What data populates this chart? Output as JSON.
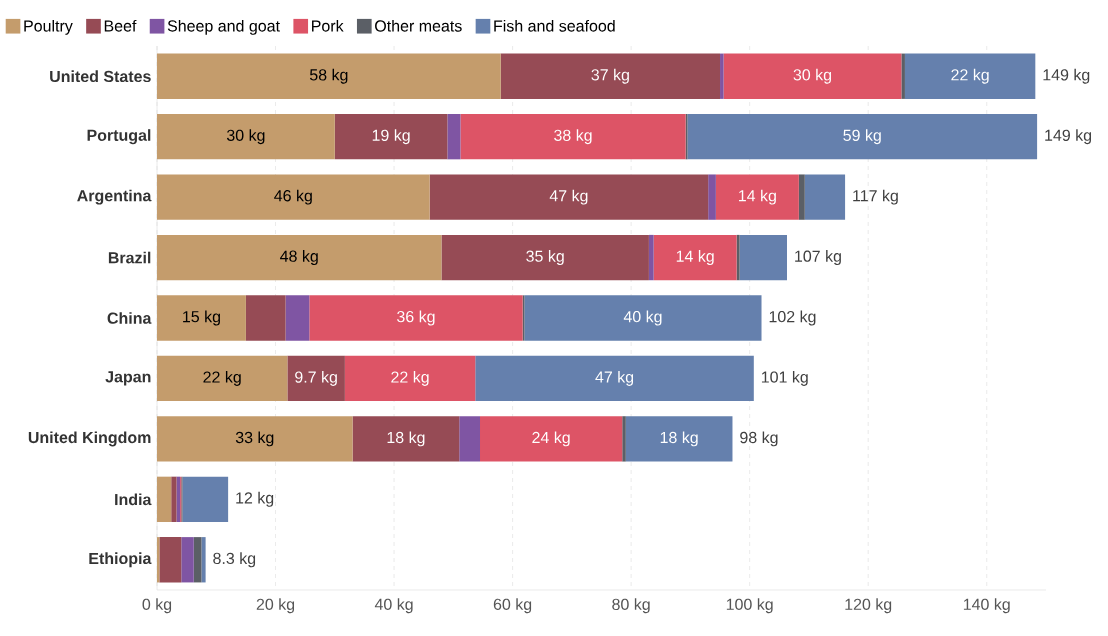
{
  "chart_data": {
    "type": "bar",
    "orientation": "horizontal",
    "stacked": true,
    "categories": [
      "United States",
      "Portugal",
      "Argentina",
      "Brazil",
      "China",
      "Japan",
      "United Kingdom",
      "India",
      "Ethiopia"
    ],
    "series": [
      {
        "name": "Poultry",
        "color": "#c49c6c",
        "values": [
          58,
          30,
          46,
          48,
          15,
          22,
          33,
          2.4,
          0.4
        ],
        "value_labels": [
          "58 kg",
          "30 kg",
          "46 kg",
          "48 kg",
          "15 kg",
          "22 kg",
          "33 kg",
          null,
          null
        ]
      },
      {
        "name": "Beef",
        "color": "#964b55",
        "values": [
          37,
          19,
          47,
          35,
          6.7,
          9.7,
          18,
          0.9,
          3.7
        ],
        "value_labels": [
          "37 kg",
          "19 kg",
          "47 kg",
          "35 kg",
          null,
          "9.7 kg",
          "18 kg",
          null,
          null
        ]
      },
      {
        "name": "Sheep and goat",
        "color": "#7f55a3",
        "values": [
          0.6,
          2.2,
          1.3,
          0.8,
          4,
          0,
          3.5,
          0.6,
          2.1
        ]
      },
      {
        "name": "Pork",
        "color": "#dd5466",
        "values": [
          30,
          38,
          14,
          14,
          36,
          22,
          24,
          0.2,
          null
        ],
        "value_labels": [
          "30 kg",
          "38 kg",
          "14 kg",
          "14 kg",
          "36 kg",
          "22 kg",
          "24 kg",
          null,
          null
        ]
      },
      {
        "name": "Other meats",
        "color": "#5b5f66",
        "values": [
          0.6,
          0.3,
          1,
          0.5,
          0.3,
          0,
          0.6,
          0.2,
          1.3
        ]
      },
      {
        "name": "Fish and seafood",
        "color": "#6580ad",
        "values": [
          22,
          59,
          6.8,
          8,
          40,
          47,
          18,
          7.7,
          0.7
        ],
        "value_labels": [
          "22 kg",
          "59 kg",
          null,
          null,
          "40 kg",
          "47 kg",
          "18 kg",
          null,
          null
        ]
      }
    ],
    "totals": [
      "149 kg",
      "149 kg",
      "117 kg",
      "107 kg",
      "102 kg",
      "101 kg",
      "98 kg",
      "12 kg",
      "8.3 kg"
    ],
    "xlim": [
      0,
      150
    ],
    "xticks": [
      {
        "value": 0,
        "label": "0 kg"
      },
      {
        "value": 20,
        "label": "20 kg"
      },
      {
        "value": 40,
        "label": "40 kg"
      },
      {
        "value": 60,
        "label": "60 kg"
      },
      {
        "value": 80,
        "label": "80 kg"
      },
      {
        "value": 100,
        "label": "100 kg"
      },
      {
        "value": 120,
        "label": "120 kg"
      },
      {
        "value": 140,
        "label": "140 kg"
      }
    ],
    "grid": "x",
    "legend": "top"
  }
}
